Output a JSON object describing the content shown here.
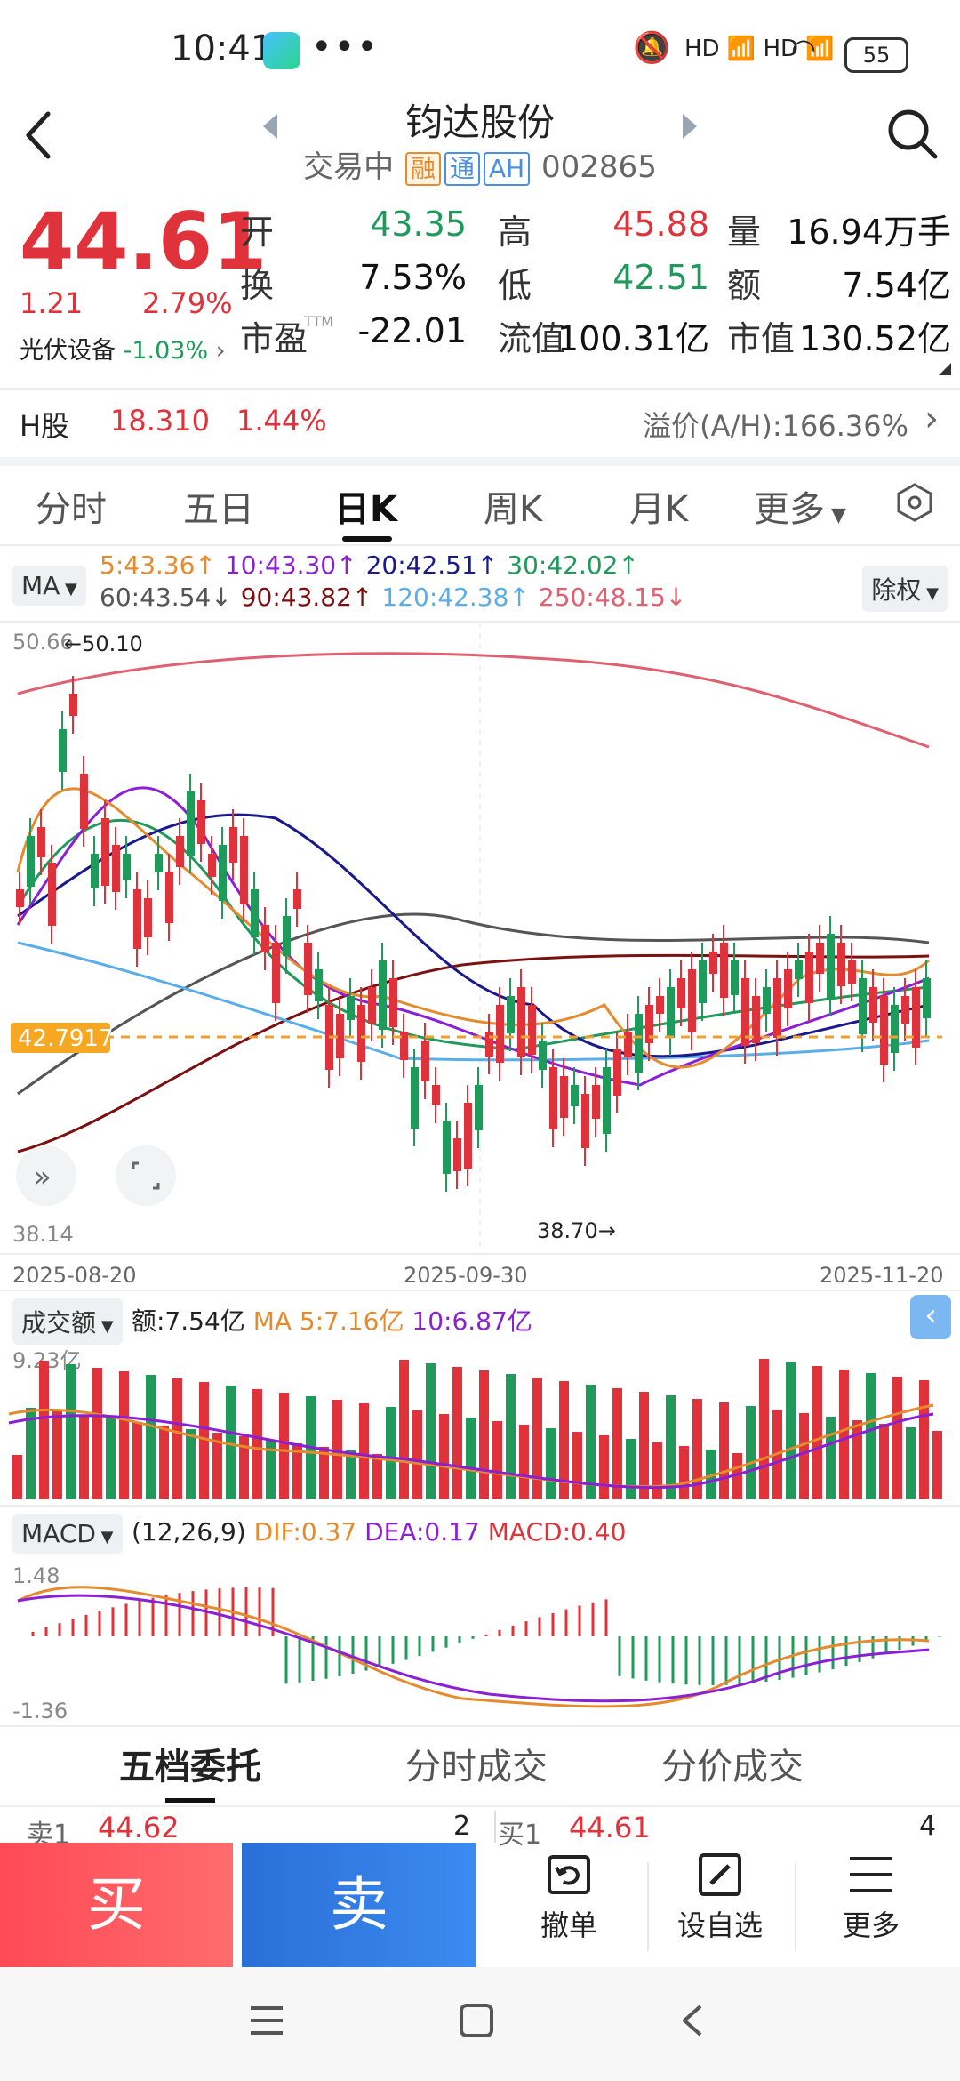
{
  "status_bar": {
    "time": "10:41",
    "more": "•••",
    "signal": "HD 📶 HD 📶",
    "battery": "55"
  },
  "header": {
    "name": "钧达股份",
    "status": "交易中",
    "tags": [
      "融",
      "通",
      "AH"
    ],
    "code": "002865"
  },
  "quote": {
    "price": "44.61",
    "change": "1.21",
    "change_pct": "2.79%",
    "sector": "光伏设备",
    "sector_pct": "-1.03%",
    "rows": [
      [
        {
          "l": "开",
          "v": "43.35",
          "c": "green"
        },
        {
          "l": "高",
          "v": "45.88",
          "c": "red"
        },
        {
          "l": "量",
          "v": "16.94万手",
          "c": "black"
        }
      ],
      [
        {
          "l": "换",
          "v": "7.53%",
          "c": "black"
        },
        {
          "l": "低",
          "v": "42.51",
          "c": "green"
        },
        {
          "l": "额",
          "v": "7.54亿",
          "c": "black"
        }
      ],
      [
        {
          "l": "市盈",
          "v": "-22.01",
          "c": "black"
        },
        {
          "l": "流值",
          "v": "100.31亿",
          "c": "black"
        },
        {
          "l": "市值",
          "v": "130.52亿",
          "c": "black"
        }
      ]
    ],
    "ttm": "TTM"
  },
  "h_share": {
    "label": "H股",
    "price": "18.310",
    "pct": "1.44%",
    "premium": "溢价(A/H):166.36%"
  },
  "tabs": [
    "分时",
    "五日",
    "日K",
    "周K",
    "月K",
    "更多"
  ],
  "ma": {
    "label": "MA",
    "items": [
      {
        "t": "5:43.36↑",
        "c": "#e68a2e"
      },
      {
        "t": "10:43.30↑",
        "c": "#8b1fd6"
      },
      {
        "t": "20:42.51↑",
        "c": "#1a1a8c"
      },
      {
        "t": "30:42.02↑",
        "c": "#1f9a5b"
      },
      {
        "t": "60:43.54↓",
        "c": "#555555"
      },
      {
        "t": "90:43.82↑",
        "c": "#7a1010"
      },
      {
        "t": "120:42.38↑",
        "c": "#5aaee8"
      },
      {
        "t": "250:48.15↓",
        "c": "#e06070"
      }
    ],
    "adjust": "除权"
  },
  "kchart": {
    "top_value": "50.66",
    "high_mark": "←50.10",
    "low_value": "38.14",
    "low_mark": "38.70→",
    "price_line": "42.7917",
    "dates": [
      "2025-08-20",
      "2025-09-30",
      "2025-11-20"
    ]
  },
  "volume": {
    "label": "成交额",
    "amount": "额:7.54亿",
    "ma5": "MA 5:7.16亿",
    "ma10": "10:6.87亿",
    "top": "9.23亿"
  },
  "macd": {
    "label": "MACD",
    "params": "(12,26,9)",
    "dif": "DIF:0.37",
    "dea": "DEA:0.17",
    "macd": "MACD:0.40",
    "top": "1.48",
    "bottom": "-1.36"
  },
  "order_tabs": [
    "五档委托",
    "分时成交",
    "分价成交"
  ],
  "order_book": {
    "left": {
      "label": "卖1",
      "price": "44.62",
      "qty": "2"
    },
    "right": {
      "label": "买1",
      "price": "44.61",
      "qty": "4"
    }
  },
  "actions": {
    "buy": "买",
    "sell": "卖",
    "cancel": "撤单",
    "watch": "设自选",
    "more": "更多"
  },
  "colors": {
    "up": "#e0323a",
    "down": "#1f9a5b",
    "accent": "#4a90e2"
  }
}
